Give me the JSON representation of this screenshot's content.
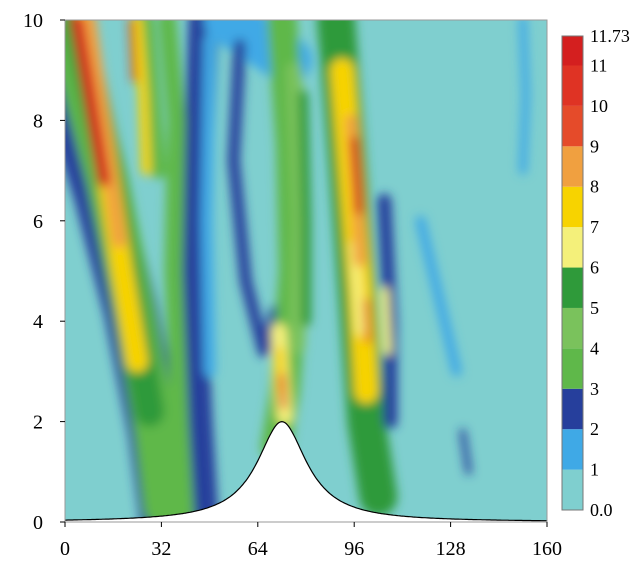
{
  "chart_data": {
    "type": "heatmap",
    "title": "",
    "xlabel": "",
    "ylabel": "",
    "xlim": [
      0,
      160
    ],
    "ylim": [
      0,
      10
    ],
    "x_ticks": [
      "0",
      "32",
      "64",
      "96",
      "128",
      "160"
    ],
    "y_ticks": [
      "0",
      "2",
      "4",
      "6",
      "8",
      "10"
    ],
    "x_tick_values": [
      0,
      32,
      64,
      96,
      128,
      160
    ],
    "y_tick_values": [
      0,
      2,
      4,
      6,
      8,
      10
    ],
    "terrain": {
      "type": "bell-shaped hill",
      "peak_x": 72,
      "peak_height": 2.0
    },
    "colorbar": {
      "labels": [
        "0.0",
        "1",
        "2",
        "3",
        "4",
        "5",
        "6",
        "7",
        "8",
        "9",
        "10",
        "11",
        "11.73"
      ],
      "levels": [
        0,
        1,
        2,
        3,
        4,
        5,
        6,
        7,
        8,
        9,
        10,
        11,
        11.73
      ],
      "colors": [
        "#7fcfcf",
        "#3fa9e6",
        "#263f9c",
        "#5fb84a",
        "#7ac25c",
        "#2f9a3a",
        "#f4f07a",
        "#f7d300",
        "#f0a040",
        "#e54b2a",
        "#df3324",
        "#d41f1f"
      ]
    }
  }
}
